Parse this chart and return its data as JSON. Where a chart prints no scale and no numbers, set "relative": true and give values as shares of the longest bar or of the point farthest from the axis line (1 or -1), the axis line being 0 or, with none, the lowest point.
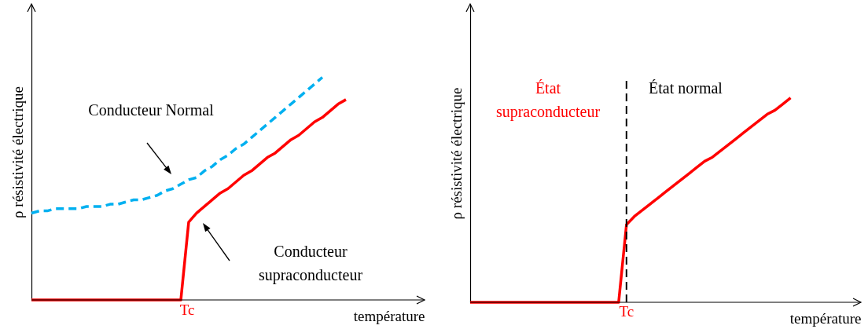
{
  "chart_data": [
    {
      "type": "line",
      "relative": true,
      "xlabel": "température",
      "ylabel": "ρ  résistivité électrique",
      "categories": [
        null,
        null,
        null,
        null,
        null,
        null,
        null,
        null,
        null,
        null,
        null,
        null,
        null,
        null,
        null,
        null,
        null,
        null,
        null,
        null,
        null,
        null,
        null,
        null,
        null,
        null,
        null,
        null,
        null,
        null,
        null,
        null,
        null,
        null,
        null,
        null,
        null,
        null,
        null,
        null,
        null
      ],
      "series": [
        {
          "color": "#00b0f0",
          "line_style": "dashed",
          "values": [
            0.39,
            0.4,
            0.4,
            0.41,
            0.41,
            0.41,
            0.41,
            0.42,
            0.42,
            0.42,
            0.43,
            0.43,
            0.44,
            0.45,
            0.45,
            0.46,
            0.47,
            0.49,
            0.5,
            0.52,
            0.54,
            0.55,
            0.58,
            0.6,
            0.63,
            0.65,
            0.68,
            0.7,
            0.73,
            0.76,
            0.79,
            0.82,
            0.85,
            0.88,
            0.91,
            0.94,
            0.97,
            1,
            null,
            null,
            null
          ]
        },
        {
          "color": "#ff0000",
          "values": [
            0,
            0,
            0,
            0,
            0,
            0,
            0,
            0,
            0,
            0,
            0,
            0,
            0,
            0,
            0,
            0,
            0,
            0,
            0,
            0,
            0.35,
            0.39,
            0.42,
            0.45,
            0.48,
            0.5,
            0.53,
            0.56,
            0.58,
            0.61,
            0.64,
            0.66,
            0.69,
            0.72,
            0.74,
            0.77,
            0.8,
            0.82,
            0.85,
            0.88,
            0.9
          ]
        }
      ],
      "annotations": [
        "Tc",
        "Conducteur Normal",
        "Conducteur\nsupraconducteur"
      ]
    },
    {
      "type": "line",
      "relative": true,
      "xlabel": "température",
      "ylabel": "ρ  résistivité électrique",
      "categories": [
        null,
        null,
        null,
        null,
        null,
        null,
        null,
        null,
        null,
        null,
        null,
        null,
        null,
        null,
        null,
        null,
        null,
        null,
        null,
        null,
        null,
        null,
        null,
        null,
        null,
        null,
        null,
        null,
        null,
        null,
        null,
        null,
        null,
        null,
        null,
        null,
        null,
        null,
        null,
        null,
        null,
        null
      ],
      "series": [
        {
          "color": "#ff0000",
          "values": [
            0,
            0,
            0,
            0,
            0,
            0,
            0,
            0,
            0,
            0,
            0,
            0,
            0,
            0,
            0,
            0,
            0,
            0,
            0,
            0,
            0.38,
            0.42,
            0.45,
            0.48,
            0.51,
            0.54,
            0.57,
            0.6,
            0.63,
            0.66,
            0.69,
            0.71,
            0.74,
            0.77,
            0.8,
            0.83,
            0.86,
            0.89,
            0.92,
            0.94,
            0.97,
            1
          ]
        }
      ],
      "ref_lines": [
        {
          "axis": "x",
          "label": "Tc",
          "color": "#000000",
          "line_style": "dashed"
        }
      ],
      "annotations": [
        "État\nsupraconducteur",
        "État normal"
      ]
    }
  ]
}
